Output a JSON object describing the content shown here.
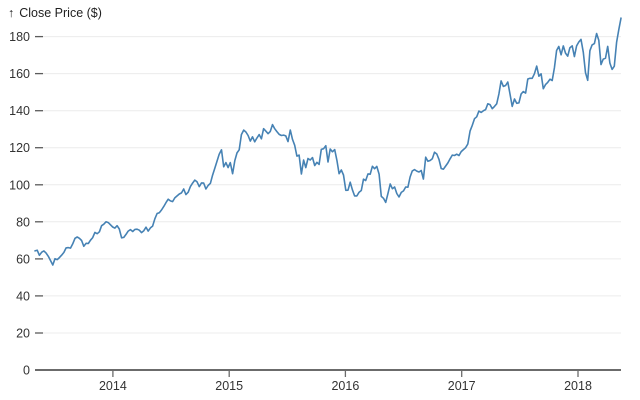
{
  "header": {
    "arrow": "↑",
    "title": "Close Price ($)"
  },
  "colors": {
    "line": "#4682b4",
    "grid": "#ececec",
    "axis": "#6b6b6b",
    "tick": "#5c5c5c",
    "label": "#333333"
  },
  "chart_data": {
    "type": "line",
    "title": "Close Price ($)",
    "ylabel": "Close Price ($)",
    "legend": "none",
    "grid": "horizontal",
    "x_ticks": [
      2014,
      2015,
      2016,
      2017,
      2018
    ],
    "y_ticks": [
      0,
      20,
      40,
      60,
      80,
      100,
      120,
      140,
      160,
      180
    ],
    "x_domain": [
      2013.33,
      2018.37
    ],
    "y_domain": [
      0,
      200
    ],
    "x_start": 2013.33,
    "x_end": 2018.37,
    "series_name": "Close Price ($)",
    "values": [
      64.3,
      64.7,
      61.9,
      63.6,
      64.3,
      63.1,
      61.4,
      59.1,
      56.7,
      60.1,
      59.6,
      60.7,
      62.0,
      63.5,
      65.9,
      66.1,
      65.8,
      68.1,
      71.1,
      71.8,
      71.1,
      69.9,
      66.8,
      68.4,
      68.3,
      70.1,
      71.5,
      74.3,
      73.6,
      74.6,
      77.9,
      78.7,
      80.0,
      79.6,
      78.4,
      77.2,
      76.6,
      77.9,
      76.1,
      71.4,
      71.6,
      73.2,
      75.0,
      75.8,
      74.8,
      75.9,
      76.0,
      75.5,
      74.2,
      75.2,
      77.1,
      75.0,
      76.7,
      77.7,
      81.7,
      84.5,
      84.9,
      86.4,
      88.2,
      90.4,
      92.2,
      91.3,
      90.9,
      92.9,
      94.0,
      95.0,
      95.6,
      97.7,
      94.7,
      96.0,
      99.0,
      100.9,
      102.5,
      101.6,
      99.0,
      101.0,
      100.9,
      97.7,
      99.6,
      100.8,
      105.2,
      108.9,
      112.7,
      116.5,
      118.9,
      109.7,
      112.0,
      109.3,
      112.0,
      106.0,
      113.0,
      117.2,
      118.9,
      127.1,
      129.5,
      128.5,
      126.6,
      123.6,
      125.9,
      123.2,
      125.3,
      127.1,
      124.8,
      130.3,
      129.0,
      127.6,
      128.8,
      132.5,
      130.3,
      128.7,
      127.2,
      126.6,
      126.8,
      126.4,
      123.3,
      129.6,
      124.5,
      121.3,
      115.5,
      116.0,
      105.8,
      113.3,
      109.3,
      114.2,
      113.4,
      114.7,
      110.4,
      112.1,
      111.0,
      119.1,
      119.5,
      121.1,
      112.3,
      119.3,
      117.8,
      119.0,
      113.2,
      106.0,
      108.0,
      105.3,
      97.0,
      97.1,
      101.4,
      97.3,
      94.0,
      94.0,
      96.0,
      96.9,
      103.0,
      102.3,
      105.9,
      105.7,
      110.0,
      108.7,
      109.9,
      105.7,
      93.7,
      92.7,
      90.5,
      95.2,
      100.4,
      97.9,
      98.8,
      95.3,
      93.4,
      95.9,
      96.7,
      98.8,
      98.7,
      104.2,
      107.5,
      108.2,
      107.4,
      106.9,
      107.7,
      103.1,
      114.9,
      112.7,
      113.1,
      114.1,
      117.6,
      116.6,
      113.7,
      108.8,
      108.4,
      110.1,
      111.8,
      114.0,
      116.0,
      115.8,
      116.5,
      115.8,
      117.9,
      119.0,
      120.0,
      122.0,
      129.1,
      132.1,
      135.7,
      136.7,
      139.8,
      139.1,
      140.0,
      140.6,
      143.7,
      143.3,
      141.1,
      142.3,
      143.7,
      149.0,
      156.1,
      153.1,
      153.6,
      155.5,
      149.0,
      142.3,
      146.3,
      144.0,
      144.2,
      149.0,
      150.3,
      149.5,
      157.1,
      157.5,
      157.5,
      159.9,
      164.1,
      158.6,
      159.9,
      151.9,
      154.1,
      155.3,
      157.0,
      156.3,
      163.1,
      172.5,
      174.7,
      170.2,
      175.0,
      171.1,
      169.4,
      174.0,
      175.0,
      169.2,
      175.0,
      177.1,
      178.5,
      171.5,
      160.5,
      156.4,
      172.4,
      175.5,
      176.2,
      181.7,
      178.0,
      164.9,
      167.8,
      168.4,
      174.7,
      165.7,
      162.3,
      164.0,
      176.9,
      183.8,
      190.0
    ]
  }
}
